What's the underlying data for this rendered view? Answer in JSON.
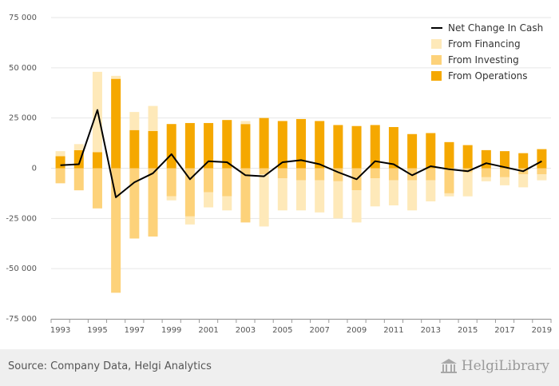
{
  "chart_data": {
    "type": "bar",
    "stacked": true,
    "x": [
      1993,
      1994,
      1995,
      1996,
      1997,
      1998,
      1999,
      2000,
      2001,
      2002,
      2003,
      2004,
      2005,
      2006,
      2007,
      2008,
      2009,
      2010,
      2011,
      2012,
      2013,
      2014,
      2015,
      2016,
      2017,
      2018,
      2019
    ],
    "x_tick_labels": [
      "1993",
      "1995",
      "1997",
      "1999",
      "2001",
      "2003",
      "2005",
      "2007",
      "2009",
      "2011",
      "2013",
      "2015",
      "2017",
      "2019"
    ],
    "ylim": [
      -75000,
      75000
    ],
    "y_ticks": [
      -75000,
      -50000,
      -25000,
      0,
      25000,
      50000,
      75000
    ],
    "y_tick_labels": [
      "-75 000",
      "-50 000",
      "-25 000",
      "0",
      "25 000",
      "50 000",
      "75 000"
    ],
    "grid": true,
    "legend_position": "top-right",
    "series": [
      {
        "name": "From Operations",
        "kind": "bar",
        "color": "#f5a800",
        "values": [
          6000,
          9000,
          8000,
          44500,
          19000,
          18500,
          22000,
          22500,
          22500,
          24000,
          22000,
          25000,
          23500,
          24500,
          23500,
          21500,
          21000,
          21500,
          20500,
          17000,
          17500,
          13000,
          11500,
          9000,
          8500,
          7500,
          9500
        ]
      },
      {
        "name": "From Investing",
        "kind": "bar",
        "color": "#fdd27a",
        "values": [
          -7500,
          -11000,
          -20000,
          -62000,
          -35000,
          -34000,
          -14000,
          -24000,
          -12000,
          -14000,
          -27000,
          -3000,
          -5000,
          -6000,
          -6000,
          -6500,
          -11000,
          -5000,
          -6000,
          -6000,
          -6000,
          -12500,
          -2000,
          -4500,
          -4500,
          -3000,
          -3000
        ]
      },
      {
        "name": "From Financing",
        "kind": "bar",
        "color": "#fee9b9",
        "values": [
          2500,
          3000,
          40000,
          1500,
          9000,
          12500,
          -2000,
          -4000,
          -7500,
          -7000,
          1500,
          -26000,
          -16000,
          -15000,
          -16000,
          -18500,
          -16000,
          -14000,
          -12500,
          -15000,
          -10500,
          -1500,
          -12000,
          -2000,
          -4000,
          -6500,
          -3000
        ]
      },
      {
        "name": "Net Change In Cash",
        "kind": "line",
        "color": "#000000",
        "values": [
          1500,
          2000,
          29000,
          -14500,
          -7000,
          -2500,
          7000,
          -5500,
          3500,
          3000,
          -3500,
          -4000,
          3000,
          4000,
          2000,
          -2000,
          -5500,
          3500,
          2000,
          -3500,
          1000,
          -500,
          -1500,
          2500,
          500,
          -1500,
          3500
        ]
      }
    ],
    "legend_items": [
      {
        "name": "Net Change In Cash",
        "color": "#000000",
        "marker": "line"
      },
      {
        "name": "From Financing",
        "color": "#fee9b9",
        "marker": "square"
      },
      {
        "name": "From Investing",
        "color": "#fdd27a",
        "marker": "square"
      },
      {
        "name": "From Operations",
        "color": "#f5a800",
        "marker": "square"
      }
    ]
  },
  "footer": {
    "source": "Source: Company Data, Helgi Analytics",
    "logo_text": "HelgiLibrary",
    "logo_icon": "building-columns-icon"
  }
}
